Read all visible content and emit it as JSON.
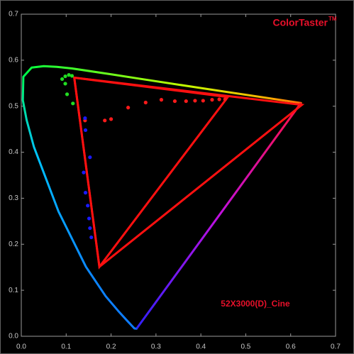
{
  "chart_data": {
    "type": "scatter",
    "xlim": [
      0,
      0.7
    ],
    "ylim": [
      0,
      0.7
    ],
    "xticks": [
      {
        "value": 0,
        "label": "0.0"
      },
      0.1,
      0.2,
      0.3,
      0.4,
      0.5,
      0.6,
      0.7
    ],
    "yticks": [
      {
        "value": 0,
        "label": "0.0"
      },
      0.1,
      0.2,
      0.3,
      0.4,
      0.5,
      0.6,
      0.7
    ],
    "brand": "ColorTaster",
    "brand_mark": "TM",
    "label": "52X3000(D)_Cine",
    "text_color": "#e8102a",
    "locus": {
      "x": [
        0.2568,
        0.252,
        0.2347,
        0.216,
        0.188,
        0.144,
        0.083,
        0.028,
        0.0119,
        0.0035,
        0.0046,
        0.0231,
        0.05,
        0.0792,
        0.113,
        0.203,
        0.262,
        0.403,
        0.623
      ],
      "y": [
        0.0165,
        0.0169,
        0.035,
        0.055,
        0.087,
        0.151,
        0.271,
        0.412,
        0.47,
        0.513,
        0.564,
        0.584,
        0.587,
        0.5856,
        0.582,
        0.569,
        0.56,
        0.539,
        0.507
      ]
    },
    "gamuts": [
      {
        "color": "#ff1010",
        "x": [
          0.118,
          0.625,
          0.174
        ],
        "y": [
          0.562,
          0.503,
          0.151
        ]
      },
      {
        "color": "#ff1010",
        "x": [
          0.118,
          0.46,
          0.174
        ],
        "y": [
          0.562,
          0.52,
          0.151
        ]
      }
    ],
    "series": [
      {
        "color": "#ff1a1a",
        "x": [
          0.142,
          0.186,
          0.2,
          0.238,
          0.277,
          0.312,
          0.342,
          0.367,
          0.387,
          0.405,
          0.425,
          0.441,
          0.454
        ],
        "y": [
          0.469,
          0.469,
          0.472,
          0.497,
          0.508,
          0.514,
          0.511,
          0.511,
          0.512,
          0.512,
          0.514,
          0.515,
          0.515
        ]
      },
      {
        "color": "#1a1aff",
        "x": [
          0.142,
          0.143,
          0.153,
          0.139,
          0.143,
          0.148,
          0.151,
          0.153,
          0.156
        ],
        "y": [
          0.474,
          0.448,
          0.389,
          0.356,
          0.312,
          0.284,
          0.256,
          0.235,
          0.215
        ]
      },
      {
        "color": "#22dd22",
        "x": [
          0.091,
          0.098,
          0.106,
          0.113,
          0.098,
          0.102,
          0.115
        ],
        "y": [
          0.559,
          0.565,
          0.568,
          0.566,
          0.549,
          0.526,
          0.506
        ]
      }
    ]
  }
}
